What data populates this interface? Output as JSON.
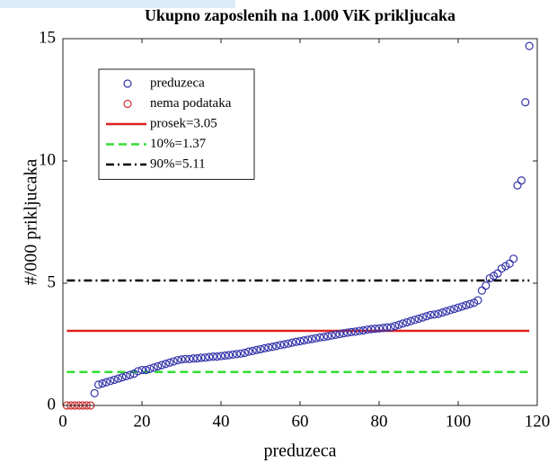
{
  "chart_data": {
    "type": "scatter",
    "title": "Ukupno zaposlenih na 1.000 ViK prikljucaka",
    "x_label": "preduzeca",
    "y_label": "#/000 prikljucaka",
    "xlim": [
      0,
      120
    ],
    "xticks": [
      0,
      20,
      40,
      60,
      80,
      100,
      120
    ],
    "ylim": [
      0,
      15
    ],
    "yticks": [
      0,
      5,
      10,
      15
    ],
    "series": [
      {
        "name": "preduzeca",
        "color": "#3333aa",
        "x": [
          8,
          9,
          10,
          11,
          12,
          13,
          14,
          15,
          16,
          17,
          18,
          19,
          20,
          21,
          22,
          23,
          24,
          25,
          26,
          27,
          28,
          29,
          30,
          31,
          32,
          33,
          34,
          35,
          36,
          37,
          38,
          39,
          40,
          41,
          42,
          43,
          44,
          45,
          46,
          47,
          48,
          49,
          50,
          51,
          52,
          53,
          54,
          55,
          56,
          57,
          58,
          59,
          60,
          61,
          62,
          63,
          64,
          65,
          66,
          67,
          68,
          69,
          70,
          71,
          72,
          73,
          74,
          75,
          76,
          77,
          78,
          79,
          80,
          81,
          82,
          83,
          84,
          85,
          86,
          87,
          88,
          89,
          90,
          91,
          92,
          93,
          94,
          95,
          96,
          97,
          98,
          99,
          100,
          101,
          102,
          103,
          104,
          105,
          106,
          107,
          108,
          109,
          110,
          111,
          112,
          113,
          114,
          115,
          116,
          117,
          118
        ],
        "values": [
          0.5,
          0.85,
          0.9,
          0.95,
          1.0,
          1.05,
          1.1,
          1.15,
          1.2,
          1.25,
          1.3,
          1.4,
          1.45,
          1.45,
          1.5,
          1.55,
          1.6,
          1.65,
          1.7,
          1.75,
          1.8,
          1.85,
          1.88,
          1.9,
          1.9,
          1.92,
          1.93,
          1.95,
          1.96,
          1.98,
          2.0,
          2.0,
          2.02,
          2.04,
          2.06,
          2.08,
          2.1,
          2.12,
          2.15,
          2.2,
          2.23,
          2.27,
          2.3,
          2.34,
          2.37,
          2.4,
          2.43,
          2.47,
          2.5,
          2.53,
          2.57,
          2.6,
          2.63,
          2.66,
          2.69,
          2.72,
          2.75,
          2.78,
          2.8,
          2.83,
          2.86,
          2.89,
          2.92,
          2.95,
          2.98,
          3.0,
          3.02,
          3.05,
          3.07,
          3.1,
          3.12,
          3.14,
          3.15,
          3.17,
          3.19,
          3.2,
          3.25,
          3.3,
          3.35,
          3.4,
          3.45,
          3.5,
          3.55,
          3.6,
          3.65,
          3.7,
          3.72,
          3.75,
          3.8,
          3.85,
          3.9,
          3.95,
          4.0,
          4.05,
          4.1,
          4.15,
          4.2,
          4.3,
          4.7,
          4.9,
          5.2,
          5.3,
          5.4,
          5.6,
          5.7,
          5.8,
          6.0,
          9.0,
          9.2,
          12.4,
          14.7
        ]
      },
      {
        "name": "nema podataka",
        "color": "#cc3333",
        "x": [
          1,
          2,
          3,
          4,
          5,
          6,
          7
        ],
        "values": [
          0,
          0,
          0,
          0,
          0,
          0,
          0
        ]
      }
    ],
    "reference_lines": [
      {
        "name": "prosek=3.05",
        "value": 3.05,
        "x": [
          1,
          118
        ],
        "color": "#e02020",
        "dash": "solid"
      },
      {
        "name": "10%=1.37",
        "value": 1.37,
        "x": [
          1,
          118
        ],
        "color": "#33dd33",
        "dash": "dashed"
      },
      {
        "name": "90%=5.11",
        "value": 5.11,
        "x": [
          1,
          118
        ],
        "color": "#000000",
        "dash": "dashdot"
      }
    ]
  }
}
